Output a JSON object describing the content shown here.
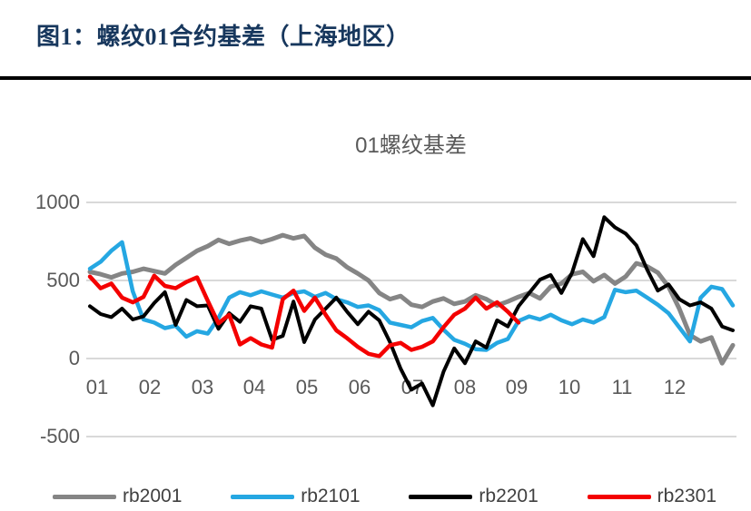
{
  "page": {
    "header_title": "图1：螺纹01合约基差（上海地区）"
  },
  "chart_data": {
    "type": "line",
    "title": "01螺纹基差",
    "xlabel": "",
    "ylabel": "",
    "x_ticks": [
      "01",
      "02",
      "03",
      "04",
      "05",
      "06",
      "07",
      "08",
      "09",
      "10",
      "11",
      "12"
    ],
    "y_ticks": [
      "1000",
      "500",
      "0",
      "-500"
    ],
    "y_tick_values": [
      1000,
      500,
      0,
      -500
    ],
    "xlim": [
      1,
      13
    ],
    "ylim": [
      -500,
      1050
    ],
    "grid": "horizontal",
    "grid_color": "#D9D9D9",
    "legend_position": "bottom",
    "axis_text_color": "#595959",
    "x_start": 1.0,
    "x_step": 0.2,
    "series": [
      {
        "name": "rb2001",
        "color": "#858585",
        "values": [
          555,
          540,
          520,
          545,
          555,
          575,
          560,
          545,
          600,
          645,
          690,
          720,
          760,
          735,
          755,
          770,
          745,
          765,
          790,
          770,
          785,
          710,
          665,
          640,
          585,
          545,
          500,
          420,
          380,
          400,
          345,
          330,
          365,
          385,
          350,
          365,
          405,
          380,
          340,
          365,
          395,
          420,
          385,
          460,
          480,
          540,
          555,
          495,
          535,
          480,
          525,
          610,
          590,
          550,
          460,
          320,
          150,
          110,
          135,
          -30,
          85
        ]
      },
      {
        "name": "rb2101",
        "color": "#25A7E2",
        "values": [
          575,
          620,
          690,
          745,
          430,
          250,
          230,
          195,
          210,
          140,
          175,
          160,
          260,
          390,
          425,
          405,
          430,
          410,
          390,
          420,
          430,
          395,
          420,
          380,
          360,
          330,
          340,
          310,
          230,
          215,
          200,
          240,
          260,
          185,
          120,
          95,
          60,
          55,
          100,
          125,
          240,
          270,
          250,
          280,
          245,
          220,
          250,
          230,
          265,
          440,
          425,
          435,
          390,
          345,
          290,
          200,
          110,
          390,
          460,
          445,
          340
        ]
      },
      {
        "name": "rb2201",
        "color": "#000000",
        "values": [
          335,
          285,
          265,
          320,
          250,
          270,
          355,
          425,
          215,
          375,
          335,
          340,
          190,
          290,
          235,
          335,
          320,
          120,
          145,
          365,
          105,
          250,
          320,
          390,
          300,
          220,
          300,
          245,
          105,
          -65,
          -200,
          -160,
          -300,
          -85,
          65,
          -30,
          110,
          70,
          245,
          205,
          335,
          420,
          505,
          535,
          420,
          550,
          765,
          655,
          905,
          840,
          800,
          725,
          570,
          435,
          475,
          380,
          340,
          360,
          320,
          205,
          180
        ]
      },
      {
        "name": "rb2301",
        "color": "#F40000",
        "values": [
          525,
          450,
          480,
          390,
          360,
          395,
          530,
          465,
          450,
          490,
          520,
          370,
          225,
          280,
          90,
          130,
          90,
          70,
          380,
          435,
          305,
          390,
          280,
          180,
          130,
          75,
          30,
          15,
          85,
          100,
          55,
          75,
          110,
          200,
          280,
          320,
          390,
          320,
          360,
          300,
          230
        ]
      }
    ]
  }
}
